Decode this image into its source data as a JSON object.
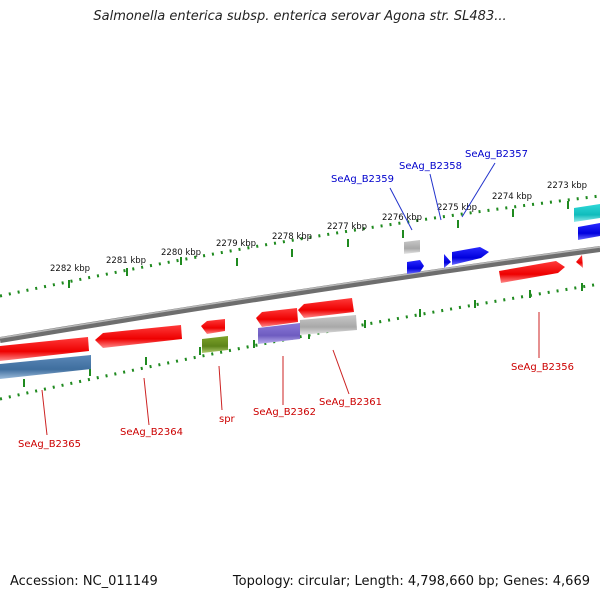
{
  "title": "Salmonella enterica subsp. enterica serovar Agona str. SL483...",
  "footer": {
    "accession": "Accession: NC_011149",
    "summary": "Topology: circular; Length: 4,798,660 bp; Genes: 4,669"
  },
  "ticks": [
    {
      "label": "2282 kbp",
      "value_kbp": 2282
    },
    {
      "label": "2281 kbp",
      "value_kbp": 2281
    },
    {
      "label": "2280 kbp",
      "value_kbp": 2280
    },
    {
      "label": "2279 kbp",
      "value_kbp": 2279
    },
    {
      "label": "2278 kbp",
      "value_kbp": 2278
    },
    {
      "label": "2277 kbp",
      "value_kbp": 2277
    },
    {
      "label": "2276 kbp",
      "value_kbp": 2276
    },
    {
      "label": "2275 kbp",
      "value_kbp": 2275
    },
    {
      "label": "2274 kbp",
      "value_kbp": 2274
    },
    {
      "label": "2273 kbp",
      "value_kbp": 2273
    }
  ],
  "gene_labels": [
    {
      "name": "SeAg_B2359",
      "color": "#0000cc"
    },
    {
      "name": "SeAg_B2358",
      "color": "#0000cc"
    },
    {
      "name": "SeAg_B2357",
      "color": "#0000cc"
    },
    {
      "name": "SeAg_B2356",
      "color": "#cc0000"
    },
    {
      "name": "SeAg_B2365",
      "color": "#cc0000"
    },
    {
      "name": "SeAg_B2364",
      "color": "#cc0000"
    },
    {
      "name": "spr",
      "color": "#cc0000"
    },
    {
      "name": "SeAg_B2362",
      "color": "#cc0000"
    },
    {
      "name": "SeAg_B2361",
      "color": "#cc0000"
    }
  ],
  "colors": {
    "forward_gene": "#ff1a1a",
    "reverse_gene": "#0000ee",
    "cyan_gene": "#17c7c7",
    "green_gene": "#668c1a",
    "steel_gene": "#4a78a8",
    "purple_gene": "#7a66c8",
    "gray_gene": "#b4b4b4",
    "backbone": "#888888",
    "tick": "#1f8a1f"
  }
}
